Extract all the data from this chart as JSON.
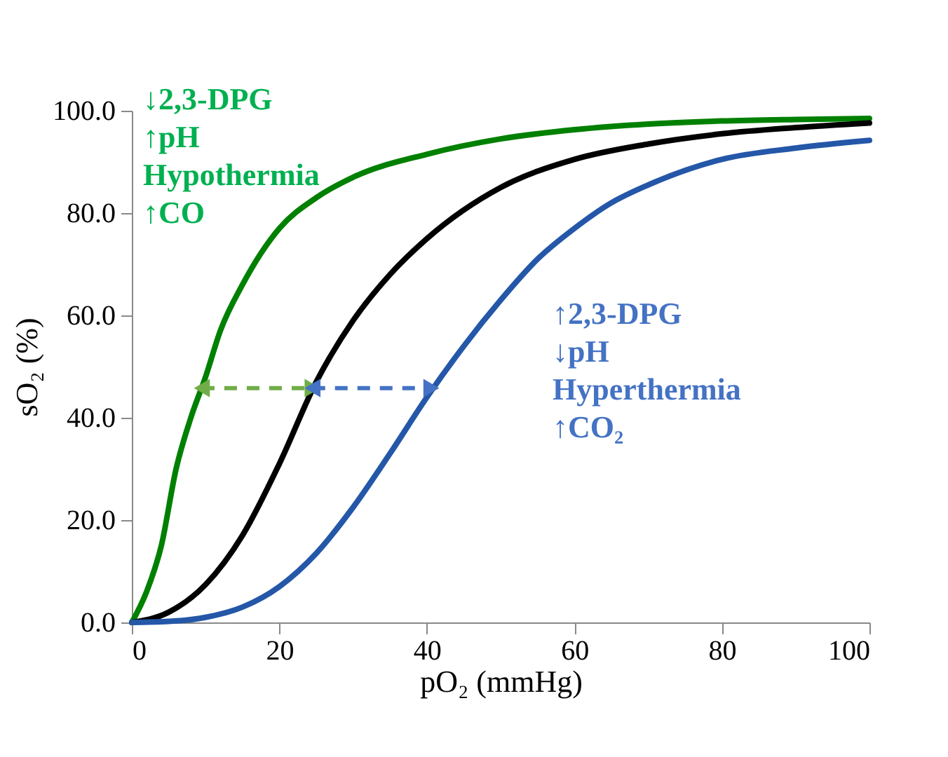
{
  "chart_data": {
    "type": "line",
    "xlabel": "pO₂ (mmHg)",
    "ylabel": "sO₂ (%)",
    "xlim": [
      0,
      100
    ],
    "ylim": [
      0,
      100
    ],
    "xticks": [
      0,
      20,
      40,
      60,
      80,
      100
    ],
    "yticks": [
      {
        "value": 0,
        "label": "0.0"
      },
      {
        "value": 20,
        "label": "20.0"
      },
      {
        "value": 40,
        "label": "40.0"
      },
      {
        "value": 60,
        "label": "60.0"
      },
      {
        "value": 80,
        "label": "80.0"
      },
      {
        "value": 100,
        "label": "100.0"
      }
    ],
    "grid": false,
    "marker": "none",
    "line_style": "solid",
    "series": [
      {
        "color": "#008000",
        "x": [
          0,
          2,
          4,
          6,
          8,
          10,
          12,
          15,
          20,
          25,
          30,
          40,
          50,
          60,
          70,
          80,
          90,
          100
        ],
        "values": [
          0,
          6,
          15,
          30,
          40,
          48,
          57,
          66,
          77,
          83,
          87,
          91.5,
          94.5,
          96.3,
          97.4,
          98,
          98.3,
          98.5
        ]
      },
      {
        "color": "#000000",
        "x": [
          0,
          5,
          10,
          15,
          20,
          25,
          30,
          35,
          40,
          50,
          60,
          70,
          80,
          90,
          100
        ],
        "values": [
          0,
          2,
          7.4,
          17,
          31,
          47,
          59,
          68,
          75,
          85,
          90.5,
          93.5,
          95.5,
          96.7,
          97.6
        ]
      },
      {
        "color": "#2457a8",
        "x": [
          0,
          5,
          10,
          15,
          20,
          25,
          30,
          35,
          40,
          45,
          50,
          55,
          60,
          65,
          70,
          80,
          90,
          100
        ],
        "values": [
          0,
          0.2,
          1,
          3,
          7,
          13.5,
          22.5,
          33,
          44,
          54,
          63,
          71,
          77,
          82,
          85.5,
          90.5,
          92.7,
          94.2
        ]
      },
      {
        "type": "line",
        "color": "#70ad47",
        "line_style": "dashed",
        "marker": "triangle",
        "x": [
          9.5,
          24.5
        ],
        "values": [
          45.8,
          45.8
        ]
      },
      {
        "type": "line",
        "color": "#4472c4",
        "line_style": "dashed",
        "marker": "triangle",
        "x": [
          24.5,
          40.6
        ],
        "values": [
          45.8,
          45.8
        ]
      }
    ],
    "annotations": [
      "↓2,3-DPG\n↑pH\nHypothermia\n↑CO",
      "↑2,3-DPG\n↓pH\nHyperthermia\n↑CO₂"
    ]
  }
}
